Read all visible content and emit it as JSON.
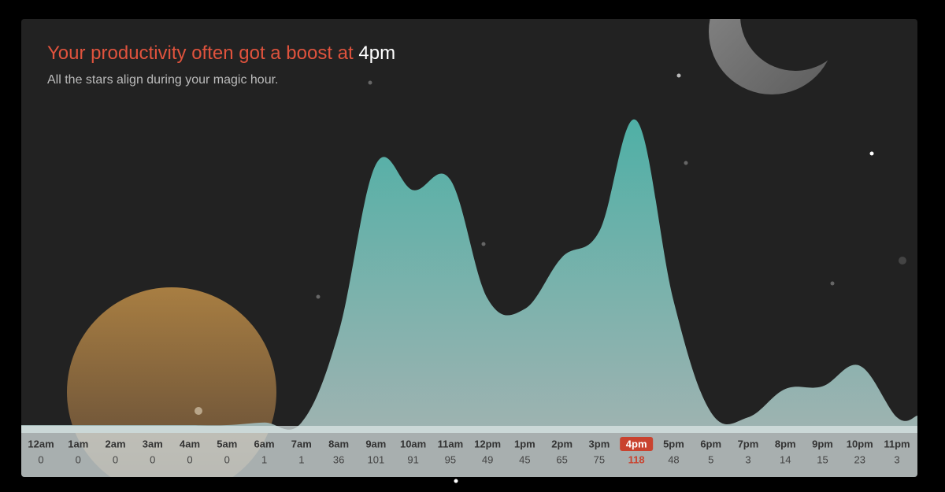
{
  "chart_data": {
    "type": "area",
    "title": "Your productivity often got a boost at",
    "highlight": "4pm",
    "subtitle": "All the stars align during your magic hour.",
    "categories": [
      "12am",
      "1am",
      "2am",
      "3am",
      "4am",
      "5am",
      "6am",
      "7am",
      "8am",
      "9am",
      "10am",
      "11am",
      "12pm",
      "1pm",
      "2pm",
      "3pm",
      "4pm",
      "5pm",
      "6pm",
      "7pm",
      "8pm",
      "9pm",
      "10pm",
      "11pm"
    ],
    "values": [
      0,
      0,
      0,
      0,
      0,
      0,
      1,
      1,
      36,
      101,
      91,
      95,
      49,
      45,
      65,
      75,
      118,
      48,
      5,
      3,
      14,
      15,
      23,
      3
    ],
    "color": "#4fb0a6"
  }
}
